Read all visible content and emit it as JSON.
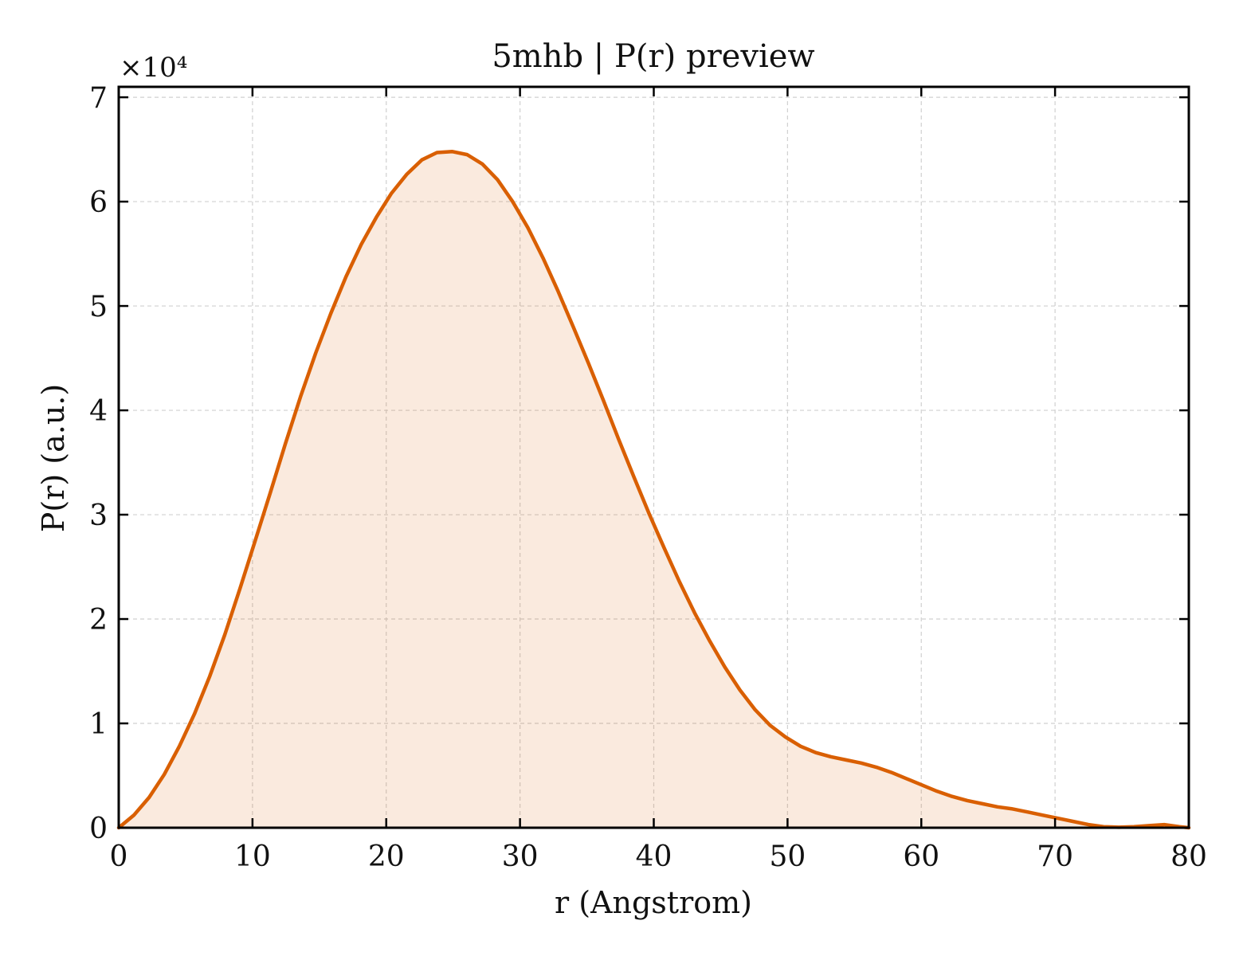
{
  "chart_data": {
    "type": "area",
    "title": "5mhb | P(r) preview",
    "xlabel": "r (Angstrom)",
    "ylabel": "P(r) (a.u.)",
    "y_multiplier_label": "×10⁴",
    "y_scale_factor": 10000,
    "xlim": [
      0,
      80
    ],
    "ylim": [
      0,
      71000
    ],
    "xticks": [
      0,
      10,
      20,
      30,
      40,
      50,
      60,
      70,
      80
    ],
    "yticks": [
      0,
      1,
      2,
      3,
      4,
      5,
      6,
      7
    ],
    "grid": true,
    "legend": "none",
    "colors": {
      "line": "#d95f02",
      "fill": "#d95f02",
      "fill_opacity": 0.13,
      "grid": "#d0d0d0"
    },
    "series": [
      {
        "x": [
          0,
          1.13,
          2.27,
          3.4,
          4.53,
          5.66,
          6.8,
          7.93,
          9.06,
          10.2,
          11.33,
          12.46,
          13.59,
          14.73,
          15.86,
          16.99,
          18.13,
          19.26,
          20.39,
          21.52,
          22.66,
          23.79,
          24.92,
          26.05,
          27.19,
          28.32,
          29.45,
          30.59,
          31.72,
          32.85,
          33.98,
          35.12,
          36.25,
          37.38,
          38.52,
          39.65,
          40.78,
          41.91,
          43.05,
          44.18,
          45.31,
          46.44,
          47.58,
          48.71,
          49.84,
          50.98,
          52.11,
          53.24,
          54.37,
          55.51,
          56.64,
          57.77,
          58.9,
          60.04,
          61.17,
          62.3,
          63.44,
          64.57,
          65.7,
          66.83,
          67.97,
          69.1,
          70.23,
          71.36,
          72.5,
          73.63,
          74.76,
          75.9,
          77.03,
          78.16,
          79.29,
          80
        ],
        "y": [
          0,
          1200,
          2900,
          5100,
          7800,
          10900,
          14500,
          18500,
          22900,
          27500,
          32100,
          36800,
          41300,
          45500,
          49300,
          52800,
          55900,
          58500,
          60800,
          62600,
          64000,
          64700,
          64800,
          64500,
          63600,
          62100,
          60000,
          57500,
          54600,
          51400,
          48000,
          44500,
          40900,
          37200,
          33600,
          30100,
          26800,
          23600,
          20600,
          17900,
          15400,
          13200,
          11300,
          9800,
          8700,
          7800,
          7200,
          6800,
          6500,
          6200,
          5800,
          5300,
          4700,
          4100,
          3500,
          3000,
          2600,
          2300,
          2000,
          1800,
          1500,
          1200,
          900,
          600,
          300,
          100,
          50,
          100,
          200,
          300,
          100,
          0
        ]
      }
    ]
  }
}
